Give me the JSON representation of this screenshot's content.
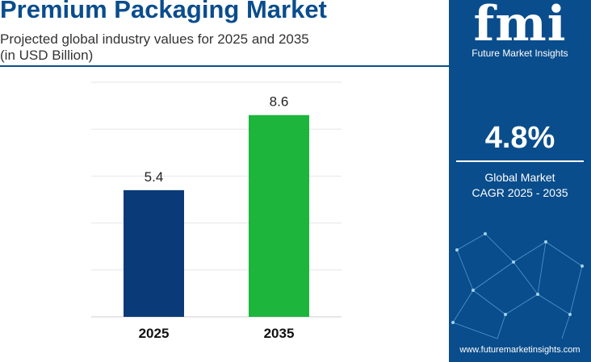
{
  "header": {
    "title": "Premium Packaging Market",
    "subtitle_line1": "Projected global industry values for 2025 and 2035",
    "subtitle_line2": "(in USD Billion)"
  },
  "chart_data": {
    "type": "bar",
    "title": "Premium Packaging Market",
    "subtitle": "Projected global industry values for 2025 and 2035 (in USD Billion)",
    "categories": [
      "2025",
      "2035"
    ],
    "values": [
      5.4,
      8.6
    ],
    "value_labels": [
      "5.4",
      "8.6"
    ],
    "bar_colors": [
      "#0a3a78",
      "#1db53c"
    ],
    "ylim": [
      0,
      10
    ],
    "grid": true,
    "xlabel": "",
    "ylabel": ""
  },
  "sidebar": {
    "logo_letters": "fmi",
    "logo_text": "Future Market Insights",
    "cagr_value": "4.8%",
    "cagr_label_line1": "Global Market",
    "cagr_label_line2": "CAGR 2025 - 2035",
    "website": "www.futuremarketinsights.com"
  },
  "colors": {
    "brand_blue": "#0a4d8c",
    "bar_2025": "#0a3a78",
    "bar_2035": "#1db53c"
  }
}
